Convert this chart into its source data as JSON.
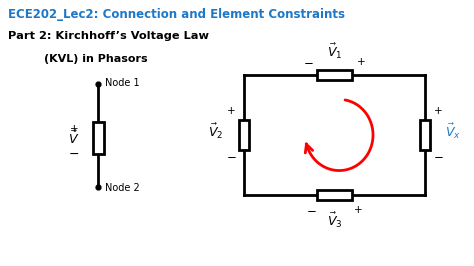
{
  "title_line1": "ECE202_Lec2: Connection and Element Constraints",
  "title_line2": "Part 2: Kirchhoff’s Voltage Law",
  "title_line3": "(KVL) in Phasors",
  "title_color": "#1E78C8",
  "text_color": "#000000",
  "bg_color": "#ffffff",
  "figsize": [
    4.74,
    2.66
  ],
  "dpi": 100,
  "vx_color": "#1E78C8",
  "lw": 2.0
}
